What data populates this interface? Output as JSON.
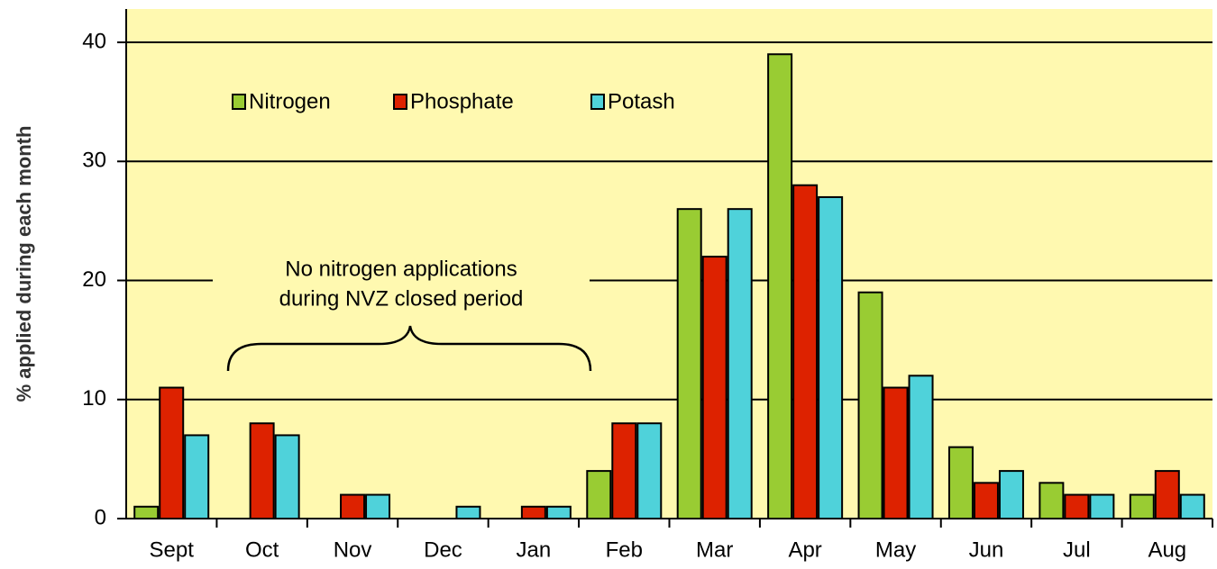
{
  "chart_data": {
    "type": "bar",
    "y_label": "% applied during each month",
    "categories": [
      "Sept",
      "Oct",
      "Nov",
      "Dec",
      "Jan",
      "Feb",
      "Mar",
      "Apr",
      "May",
      "Jun",
      "Jul",
      "Aug"
    ],
    "series": [
      {
        "name": "Nitrogen",
        "color": "#99cc33",
        "values": [
          1,
          0,
          0,
          0,
          0,
          4,
          26,
          39,
          19,
          6,
          3,
          2
        ]
      },
      {
        "name": "Phosphate",
        "color": "#dd2200",
        "values": [
          11,
          8,
          2,
          0,
          1,
          8,
          22,
          28,
          11,
          3,
          2,
          4
        ]
      },
      {
        "name": "Potash",
        "color": "#4fd2da",
        "values": [
          7,
          7,
          2,
          1,
          1,
          8,
          26,
          27,
          12,
          4,
          2,
          2
        ]
      }
    ],
    "ylim": [
      0,
      42.8
    ],
    "yticks": [
      0,
      10,
      20,
      30,
      40
    ],
    "grid": true,
    "background": "#fff9b0",
    "annotation": [
      "No nitrogen applications",
      "during NVZ closed period"
    ],
    "legend": "upper-left"
  }
}
